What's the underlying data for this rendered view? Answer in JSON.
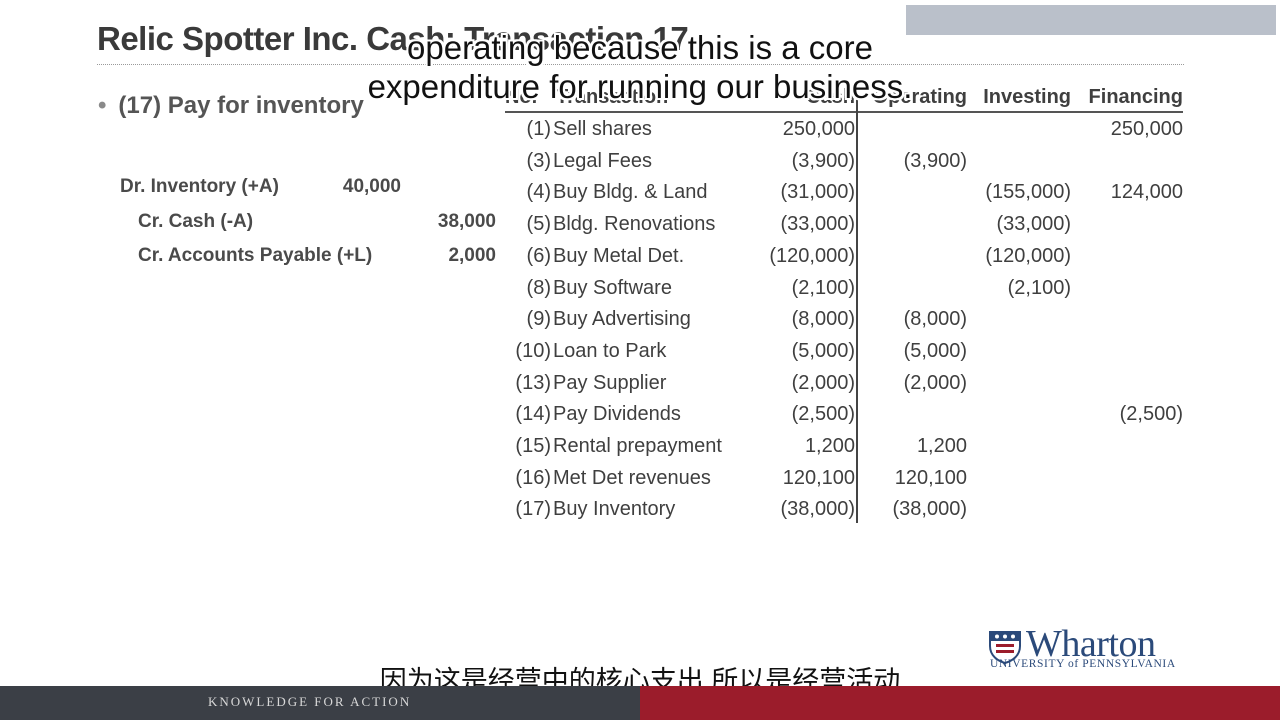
{
  "slide": {
    "title": "Relic Spotter Inc. Cash: Transaction 17",
    "bullet": "(17) Pay for inventory",
    "journal": {
      "line1_label": "Dr. Inventory (+A)",
      "line1_amount": "40,000",
      "line2_label": "Cr. Cash (-A)",
      "line2_amount": "38,000",
      "line3_label": "Cr. Accounts Payable (+L)",
      "line3_amount": "2,000"
    },
    "table": {
      "headers": {
        "no": "No.",
        "transaction": "Transaction",
        "cash": "Cash",
        "operating": "Operating",
        "investing": "Investing",
        "financing": "Financing"
      },
      "rows": [
        {
          "no": "(1)",
          "tx": "Sell shares",
          "cash": "250,000",
          "op": "",
          "inv": "",
          "fin": "250,000"
        },
        {
          "no": "(3)",
          "tx": "Legal Fees",
          "cash": "(3,900)",
          "op": "(3,900)",
          "inv": "",
          "fin": ""
        },
        {
          "no": "(4)",
          "tx": "Buy Bldg. & Land",
          "cash": "(31,000)",
          "op": "",
          "inv": "(155,000)",
          "fin": "124,000"
        },
        {
          "no": "(5)",
          "tx": "Bldg. Renovations",
          "cash": "(33,000)",
          "op": "",
          "inv": "(33,000)",
          "fin": ""
        },
        {
          "no": "(6)",
          "tx": "Buy Metal Det.",
          "cash": "(120,000)",
          "op": "",
          "inv": "(120,000)",
          "fin": ""
        },
        {
          "no": "(8)",
          "tx": "Buy Software",
          "cash": "(2,100)",
          "op": "",
          "inv": "(2,100)",
          "fin": ""
        },
        {
          "no": "(9)",
          "tx": "Buy Advertising",
          "cash": "(8,000)",
          "op": "(8,000)",
          "inv": "",
          "fin": ""
        },
        {
          "no": "(10)",
          "tx": "Loan to Park",
          "cash": "(5,000)",
          "op": "(5,000)",
          "inv": "",
          "fin": ""
        },
        {
          "no": "(13)",
          "tx": "Pay Supplier",
          "cash": "(2,000)",
          "op": "(2,000)",
          "inv": "",
          "fin": ""
        },
        {
          "no": "(14)",
          "tx": "Pay Dividends",
          "cash": "(2,500)",
          "op": "",
          "inv": "",
          "fin": "(2,500)"
        },
        {
          "no": "(15)",
          "tx": "Rental prepayment",
          "cash": "1,200",
          "op": "1,200",
          "inv": "",
          "fin": ""
        },
        {
          "no": "(16)",
          "tx": "Met Det revenues",
          "cash": "120,100",
          "op": "120,100",
          "inv": "",
          "fin": ""
        },
        {
          "no": "(17)",
          "tx": "Buy Inventory",
          "cash": "(38,000)",
          "op": "(38,000)",
          "inv": "",
          "fin": ""
        }
      ]
    }
  },
  "subtitles": {
    "en_line1": "operating because this is a core",
    "en_line2": "expenditure for running our business.",
    "zh": "因为这是经营中的核心支出 所以是经营活动"
  },
  "logo": {
    "word": "Wharton",
    "university": "UNIVERSITY of PENNSYLVANIA"
  },
  "footer": {
    "tagline": "KNOWLEDGE FOR ACTION"
  },
  "colors": {
    "footer_dark": "#3b3f46",
    "footer_red": "#9b1c2b",
    "logo_blue": "#2b4a7a"
  }
}
